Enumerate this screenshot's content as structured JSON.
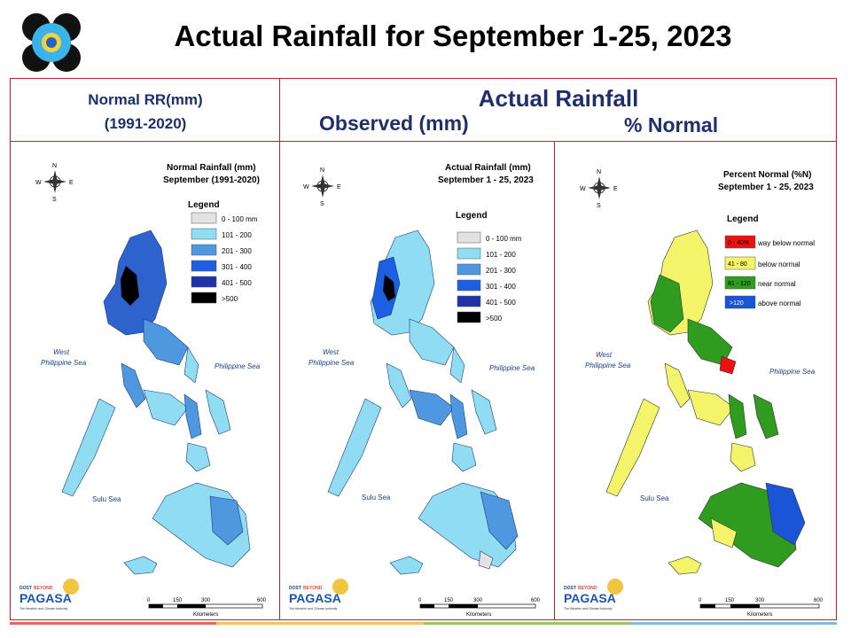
{
  "title": "Actual Rainfall for September 1-25, 2023",
  "header": {
    "normal_line1": "Normal RR(mm)",
    "normal_line2": "(1991-2020)",
    "actual": "Actual Rainfall",
    "observed": "Observed (mm)",
    "percent": "% Normal"
  },
  "compass": {
    "n": "N",
    "s": "S",
    "e": "E",
    "w": "W"
  },
  "sea_labels": {
    "west_1": "West",
    "west_2": "Philippine Sea",
    "east": "Philippine Sea",
    "sulu": "Sulu Sea"
  },
  "scale": {
    "ticks": [
      "0",
      "150",
      "300",
      "600"
    ],
    "unit": "Kilometers"
  },
  "agency": {
    "top": "DOST",
    "mid": "BEYOND",
    "name": "PAGASA",
    "tagline": "The Weather and Climate Authority"
  },
  "maps": [
    {
      "map_title_1": "Normal Rainfall (mm)",
      "map_title_2": "September (1991-2020)",
      "legend_title": "Legend",
      "legend": [
        {
          "label": "0 - 100 mm",
          "color": "#e2e2e2"
        },
        {
          "label": "101 - 200",
          "color": "#8fdcf3"
        },
        {
          "label": "201 - 300",
          "color": "#4f97de"
        },
        {
          "label": "301 - 400",
          "color": "#1c5fe0"
        },
        {
          "label": "401 - 500",
          "color": "#1f33a8"
        },
        {
          "label": ">500",
          "color": "#000000"
        }
      ]
    },
    {
      "map_title_1": "Actual Rainfall (mm)",
      "map_title_2": "September 1 - 25, 2023",
      "legend_title": "Legend",
      "legend": [
        {
          "label": "0 - 100 mm",
          "color": "#e2e2e2"
        },
        {
          "label": "101 - 200",
          "color": "#8fdcf3"
        },
        {
          "label": "201 - 300",
          "color": "#4f97de"
        },
        {
          "label": "301 - 400",
          "color": "#1c5fe0"
        },
        {
          "label": "401 - 500",
          "color": "#1f33a8"
        },
        {
          "label": ">500",
          "color": "#000000"
        }
      ]
    },
    {
      "map_title_1": "Percent Normal (%N)",
      "map_title_2": "September 1 - 25, 2023",
      "legend_title": "Legend",
      "legend": [
        {
          "label": "0 - 40%",
          "desc": "way below normal",
          "color": "#ee1111"
        },
        {
          "label": "41 - 80",
          "desc": "below normal",
          "color": "#f4f46a"
        },
        {
          "label": "81 - 120",
          "desc": "near normal",
          "color": "#2f9b1f"
        },
        {
          "label": ">120",
          "desc": "above normal",
          "color": "#1a55d8"
        }
      ]
    }
  ],
  "bottom_stripe_colors": [
    "#e8666a",
    "#f3c35b",
    "#8fc86b",
    "#7fb9e0"
  ]
}
